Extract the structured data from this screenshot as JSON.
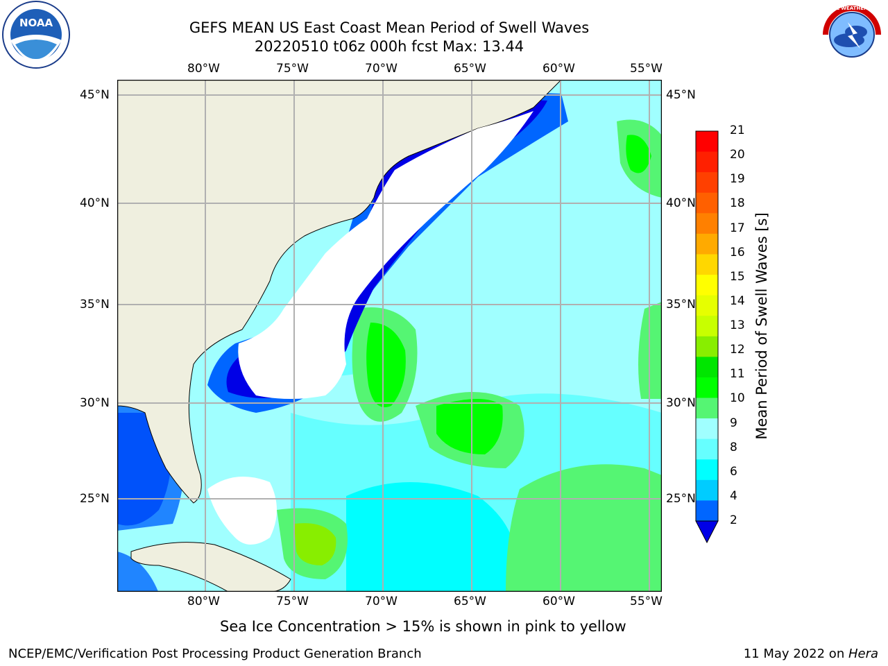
{
  "title": {
    "line1": "GEFS MEAN US East Coast Mean Period of Swell Waves",
    "line2": "20220510 t06z 000h fcst   Max: 13.44"
  },
  "map": {
    "lon_labels": [
      "80°W",
      "75°W",
      "70°W",
      "65°W",
      "60°W",
      "55°W"
    ],
    "lat_labels": [
      "45°N",
      "40°N",
      "35°N",
      "30°N",
      "25°N"
    ],
    "lon_range": [
      -85,
      -54.4
    ],
    "lat_range": [
      20.5,
      46
    ],
    "gridlines": true
  },
  "colorbar": {
    "label": "Mean Period of Swell Waves [s]",
    "ticks": [
      "21",
      "20",
      "19",
      "18",
      "17",
      "16",
      "15",
      "14",
      "13",
      "12",
      "11",
      "10",
      "9",
      "8",
      "6",
      "4",
      "2"
    ],
    "colors_top_to_bottom": [
      "#ff0000",
      "#ff2000",
      "#ff4000",
      "#ff6000",
      "#ff8000",
      "#ffaa00",
      "#ffd700",
      "#ffff00",
      "#e6ff00",
      "#c8ff00",
      "#88ee00",
      "#00e600",
      "#00ff00",
      "#55f573",
      "#a0ffff",
      "#66ffff",
      "#00ffff",
      "#00ccff",
      "#0066ff"
    ],
    "extend_color": "#0000e6"
  },
  "logos": {
    "left": "NOAA",
    "right": "NATIONAL WEATHER SERVICE"
  },
  "note": "Sea Ice Concentration > 15% is shown in pink to yellow",
  "footer": {
    "left": "NCEP/EMC/Verification Post Processing Product Generation Branch",
    "right_date": "11 May 2022 on ",
    "right_host": "Hera"
  }
}
